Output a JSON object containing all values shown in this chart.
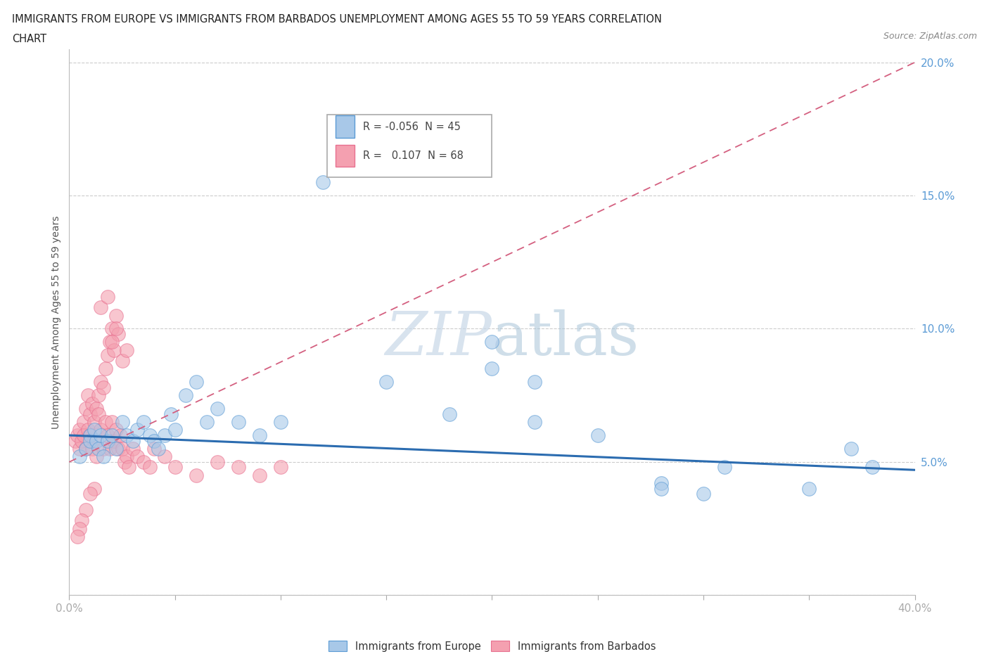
{
  "title_line1": "IMMIGRANTS FROM EUROPE VS IMMIGRANTS FROM BARBADOS UNEMPLOYMENT AMONG AGES 55 TO 59 YEARS CORRELATION",
  "title_line2": "CHART",
  "source_text": "Source: ZipAtlas.com",
  "ylabel": "Unemployment Among Ages 55 to 59 years",
  "xlim": [
    0.0,
    0.4
  ],
  "ylim": [
    0.0,
    0.205
  ],
  "xticks": [
    0.0,
    0.05,
    0.1,
    0.15,
    0.2,
    0.25,
    0.3,
    0.35,
    0.4
  ],
  "yticks": [
    0.0,
    0.05,
    0.1,
    0.15,
    0.2
  ],
  "ytick_labels_right": [
    "",
    "5.0%",
    "10.0%",
    "15.0%",
    "20.0%"
  ],
  "legend_europe_R": "-0.056",
  "legend_europe_N": "45",
  "legend_barbados_R": "0.107",
  "legend_barbados_N": "68",
  "color_europe": "#a8c8e8",
  "color_barbados": "#f4a0b0",
  "color_europe_edge": "#5b9bd5",
  "color_barbados_edge": "#e87090",
  "color_europe_line": "#2b6cb0",
  "color_barbados_line": "#d46080",
  "watermark_color": "#c8d8e8",
  "europe_x": [
    0.005,
    0.008,
    0.01,
    0.01,
    0.012,
    0.013,
    0.014,
    0.015,
    0.016,
    0.018,
    0.02,
    0.022,
    0.025,
    0.027,
    0.03,
    0.032,
    0.035,
    0.038,
    0.04,
    0.042,
    0.045,
    0.048,
    0.05,
    0.055,
    0.06,
    0.065,
    0.07,
    0.08,
    0.09,
    0.1,
    0.12,
    0.15,
    0.18,
    0.2,
    0.22,
    0.25,
    0.28,
    0.3,
    0.35,
    0.37,
    0.2,
    0.22,
    0.28,
    0.31,
    0.38
  ],
  "europe_y": [
    0.052,
    0.055,
    0.06,
    0.058,
    0.062,
    0.058,
    0.055,
    0.06,
    0.052,
    0.058,
    0.06,
    0.055,
    0.065,
    0.06,
    0.058,
    0.062,
    0.065,
    0.06,
    0.058,
    0.055,
    0.06,
    0.068,
    0.062,
    0.075,
    0.08,
    0.065,
    0.07,
    0.065,
    0.06,
    0.065,
    0.155,
    0.08,
    0.068,
    0.085,
    0.065,
    0.06,
    0.042,
    0.038,
    0.04,
    0.055,
    0.095,
    0.08,
    0.04,
    0.048,
    0.048
  ],
  "barbados_x": [
    0.003,
    0.004,
    0.005,
    0.005,
    0.006,
    0.007,
    0.007,
    0.008,
    0.008,
    0.009,
    0.009,
    0.01,
    0.01,
    0.011,
    0.011,
    0.012,
    0.012,
    0.013,
    0.013,
    0.014,
    0.014,
    0.015,
    0.015,
    0.016,
    0.016,
    0.017,
    0.017,
    0.018,
    0.018,
    0.019,
    0.019,
    0.02,
    0.02,
    0.021,
    0.021,
    0.022,
    0.022,
    0.023,
    0.023,
    0.024,
    0.025,
    0.026,
    0.027,
    0.028,
    0.03,
    0.032,
    0.035,
    0.038,
    0.04,
    0.045,
    0.05,
    0.06,
    0.07,
    0.08,
    0.09,
    0.1,
    0.015,
    0.018,
    0.02,
    0.022,
    0.025,
    0.027,
    0.012,
    0.01,
    0.008,
    0.006,
    0.005,
    0.004
  ],
  "barbados_y": [
    0.058,
    0.06,
    0.055,
    0.062,
    0.058,
    0.065,
    0.06,
    0.07,
    0.055,
    0.075,
    0.062,
    0.06,
    0.068,
    0.055,
    0.072,
    0.065,
    0.058,
    0.07,
    0.052,
    0.068,
    0.075,
    0.062,
    0.08,
    0.055,
    0.078,
    0.065,
    0.085,
    0.06,
    0.09,
    0.055,
    0.095,
    0.065,
    0.1,
    0.058,
    0.092,
    0.062,
    0.105,
    0.055,
    0.098,
    0.06,
    0.055,
    0.05,
    0.052,
    0.048,
    0.055,
    0.052,
    0.05,
    0.048,
    0.055,
    0.052,
    0.048,
    0.045,
    0.05,
    0.048,
    0.045,
    0.048,
    0.108,
    0.112,
    0.095,
    0.1,
    0.088,
    0.092,
    0.04,
    0.038,
    0.032,
    0.028,
    0.025,
    0.022
  ],
  "europe_line_x": [
    0.0,
    0.4
  ],
  "europe_line_y": [
    0.06,
    0.047
  ],
  "barbados_line_x": [
    0.0,
    0.4
  ],
  "barbados_line_y": [
    0.05,
    0.2
  ]
}
